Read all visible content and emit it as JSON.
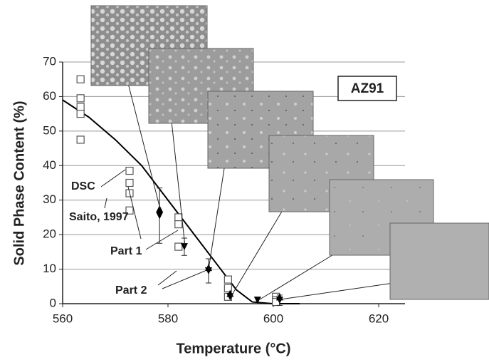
{
  "chart_data": {
    "type": "scatter",
    "title": "AZ91",
    "xlabel": "Temperature (°C)",
    "ylabel": "Solid Phase Content (%)",
    "xlim": [
      560,
      625
    ],
    "xticks": [
      560,
      580,
      600,
      620
    ],
    "ylim": [
      0,
      70
    ],
    "yticks": [
      0,
      10,
      20,
      30,
      40,
      50,
      60,
      70
    ],
    "grid": true,
    "series": [
      {
        "name": "DSC",
        "kind": "line",
        "color": "#000000",
        "x": [
          560,
          565,
          570,
          575,
          580,
          585,
          590,
          593,
          596,
          600,
          605
        ],
        "values": [
          59,
          54,
          47.5,
          40,
          30,
          20,
          10,
          4,
          0.5,
          0,
          0
        ]
      },
      {
        "name": "Saito, 1997",
        "kind": "scatter",
        "marker": "square",
        "color": "#555555",
        "x": [
          563.4,
          563.4,
          563.4,
          563.4,
          563.4,
          572.7,
          572.7,
          572.7,
          572.7,
          582,
          582,
          582,
          591.4,
          591.4,
          591.4,
          600.5,
          600.5,
          600.5
        ],
        "values": [
          65,
          59.5,
          57,
          55,
          47.5,
          38.5,
          35,
          32,
          27,
          25,
          23,
          16.5,
          7,
          4.5,
          2,
          2,
          1,
          0.5
        ]
      },
      {
        "name": "Part 1",
        "kind": "scatter",
        "marker": "triangle-down",
        "color": "#000000",
        "x": [
          578.4,
          583.1,
          587.7,
          591.8,
          597,
          601.2
        ],
        "values": [
          25.5,
          16.5,
          9.5,
          2,
          1,
          1
        ],
        "errors": [
          8,
          2.5,
          3.5,
          null,
          null,
          1.5
        ]
      },
      {
        "name": "Part 2",
        "kind": "scatter",
        "marker": "triangle-up",
        "color": "#000000",
        "x": [
          578.4,
          587.7,
          591.8,
          601.2
        ],
        "values": [
          27.5,
          10.5,
          3,
          2
        ]
      }
    ]
  }
}
